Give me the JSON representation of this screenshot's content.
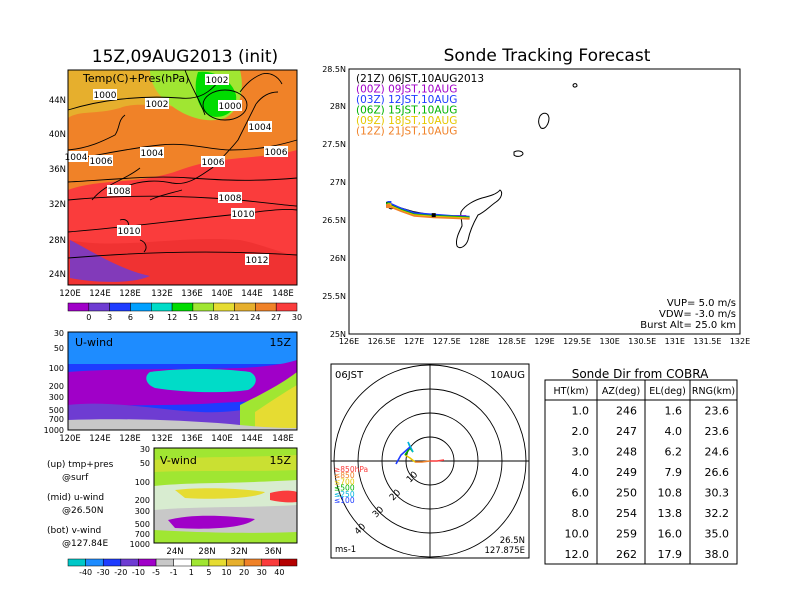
{
  "left_title": "15Z,09AUG2013 (init)",
  "right_title": "Sonde Tracking Forecast",
  "temp_panel": {
    "label": "Temp(C)+Pres(hPa)",
    "lat_ticks": [
      "44N",
      "40N",
      "36N",
      "32N",
      "28N",
      "24N"
    ],
    "lon_ticks": [
      "120E",
      "124E",
      "128E",
      "132E",
      "136E",
      "140E",
      "144E",
      "148E"
    ],
    "isobar_labels": [
      "1002",
      "1000",
      "1002",
      "1000",
      "1004",
      "1004",
      "1004",
      "1006",
      "1006",
      "1006",
      "1008",
      "1008",
      "1010",
      "1010",
      "1012"
    ],
    "colorbar_labels": [
      "0",
      "3",
      "6",
      "9",
      "12",
      "15",
      "18",
      "21",
      "24",
      "27",
      "30"
    ],
    "colorbar_colors": [
      "#a000c8",
      "#6e3cd2",
      "#1e3cff",
      "#00a0ff",
      "#00dcc8",
      "#00dc00",
      "#a0e632",
      "#e6dc32",
      "#e6af2d",
      "#f08228",
      "#fa3c3c"
    ]
  },
  "u_panel": {
    "label": "U-wind",
    "time": "15Z",
    "p_ticks": [
      "30",
      "50",
      "100",
      "200",
      "300",
      "500",
      "700",
      "1000"
    ],
    "lon_ticks": [
      "120E",
      "124E",
      "128E",
      "132E",
      "136E",
      "140E",
      "144E",
      "148E"
    ]
  },
  "v_panel": {
    "label": "V-wind",
    "time": "15Z",
    "p_ticks": [
      "30",
      "50",
      "100",
      "200",
      "300",
      "500",
      "700",
      "1000"
    ],
    "lat_ticks": [
      "24N",
      "28N",
      "32N",
      "36N"
    ]
  },
  "notes": [
    {
      "a": "(up) tmp+pres",
      "b": "@surf"
    },
    {
      "a": "(mid) u-wind",
      "b": "@26.50N"
    },
    {
      "a": "(bot) v-wind",
      "b": "@127.84E"
    }
  ],
  "wind_colorbar": {
    "labels": [
      "-40",
      "-30",
      "-20",
      "-10",
      "-5",
      "-1",
      "1",
      "5",
      "10",
      "20",
      "30",
      "40"
    ],
    "colors": [
      "#00c8c8",
      "#1e8cff",
      "#1e3cff",
      "#6e3cd2",
      "#a000c8",
      "#c8c8c8",
      "#ffffff",
      "#a0e632",
      "#e6dc32",
      "#e6af2d",
      "#f08228",
      "#fa3c3c",
      "#b40000"
    ]
  },
  "track_map": {
    "lat_ticks": [
      "28.5N",
      "28N",
      "27.5N",
      "27N",
      "26.5N",
      "26N",
      "25.5N",
      "25N"
    ],
    "lon_ticks": [
      "126E",
      "126.5E",
      "127E",
      "127.5E",
      "128E",
      "128.5E",
      "129E",
      "129.5E",
      "130E",
      "130.5E",
      "131E",
      "131.5E",
      "132E"
    ],
    "legend": [
      {
        "text": "(21Z)  06JST,10AUG2013",
        "color": "#000000"
      },
      {
        "text": "(00Z)  09JST,10AUG",
        "color": "#a000c8"
      },
      {
        "text": "(03Z)  12JST,10AUG",
        "color": "#1e3cff"
      },
      {
        "text": "(06Z)  15JST,10AUG",
        "color": "#00b400"
      },
      {
        "text": "(09Z)  18JST,10AUG",
        "color": "#e6c800"
      },
      {
        "text": "(12Z)  21JST,10AUG",
        "color": "#f08228"
      }
    ],
    "info": [
      "VUP=  5.0  m/s",
      "VDW=  -3.0  m/s",
      "Burst Alt=  25.0  km"
    ]
  },
  "polar": {
    "time_left": "06JST",
    "time_right": "10AUG",
    "pos_lat": "26.5N",
    "pos_lon": "127.875E",
    "unit": "ms-1",
    "ring_labels": [
      "10",
      "20",
      "30",
      "40"
    ],
    "levels": [
      {
        "text": "≥850hPa",
        "color": "#fa3c3c"
      },
      {
        "text": "≤850",
        "color": "#f08228"
      },
      {
        "text": "≤700",
        "color": "#e6c800"
      },
      {
        "text": "≤500",
        "color": "#00b400"
      },
      {
        "text": "≤250",
        "color": "#00b4dc"
      },
      {
        "text": "≤100",
        "color": "#1e3cff"
      }
    ]
  },
  "sonde_table": {
    "title": "Sonde Dir from COBRA",
    "headers": [
      "HT(km)",
      "AZ(deg)",
      "EL(deg)",
      "RNG(km)"
    ],
    "rows": [
      [
        "1.0",
        "246",
        "1.6",
        "23.6"
      ],
      [
        "2.0",
        "247",
        "4.0",
        "23.6"
      ],
      [
        "3.0",
        "248",
        "6.2",
        "24.6"
      ],
      [
        "4.0",
        "249",
        "7.9",
        "26.6"
      ],
      [
        "6.0",
        "250",
        "10.8",
        "30.3"
      ],
      [
        "8.0",
        "254",
        "13.8",
        "32.2"
      ],
      [
        "10.0",
        "259",
        "16.0",
        "35.0"
      ],
      [
        "12.0",
        "262",
        "17.9",
        "38.0"
      ]
    ]
  },
  "chart_data": [
    {
      "type": "heatmap",
      "title": "15Z,09AUG2013 (init)",
      "subtitle": "Temp(C)+Pres(hPa)",
      "xlim": [
        120,
        150
      ],
      "ylim": [
        22,
        48
      ],
      "legend": [
        0,
        3,
        6,
        9,
        12,
        15,
        18,
        21,
        24,
        27,
        30
      ]
    },
    {
      "type": "heatmap",
      "title": "U-wind",
      "xlim": [
        120,
        150
      ],
      "y_ticks": [
        30,
        50,
        100,
        200,
        300,
        500,
        700,
        1000
      ]
    },
    {
      "type": "heatmap",
      "title": "V-wind",
      "x_ticks": [
        "24N",
        "28N",
        "32N",
        "36N"
      ],
      "y_ticks": [
        30,
        50,
        100,
        200,
        300,
        500,
        700,
        1000
      ]
    },
    {
      "type": "line",
      "title": "Sonde Tracking Forecast",
      "xlim": [
        126,
        132
      ],
      "ylim": [
        25,
        28.5
      ],
      "series": [
        {
          "name": "(21Z)  06JST,10AUG2013",
          "x": [
            126.6,
            126.8,
            127.0,
            127.2,
            127.35
          ],
          "y": [
            26.72,
            26.66,
            26.61,
            26.58,
            26.57
          ]
        },
        {
          "name": "(00Z)  09JST,10AUG",
          "x": [
            126.6,
            126.8,
            127.0,
            127.3,
            127.5,
            127.8
          ],
          "y": [
            26.7,
            26.64,
            26.59,
            26.57,
            26.56,
            26.56
          ]
        },
        {
          "name": "(03Z)  12JST,10AUG",
          "x": [
            126.62,
            126.8,
            127.0,
            127.3,
            127.6,
            127.85
          ],
          "y": [
            26.73,
            26.66,
            26.6,
            26.58,
            26.56,
            26.55
          ]
        },
        {
          "name": "(06Z)  15JST,10AUG",
          "x": [
            126.6,
            126.8,
            127.0,
            127.3,
            127.6,
            127.85
          ],
          "y": [
            26.71,
            26.64,
            26.58,
            26.56,
            26.55,
            26.54
          ]
        },
        {
          "name": "(09Z)  18JST,10AUG",
          "x": [
            126.62,
            126.8,
            127.0,
            127.3,
            127.6,
            127.85
          ],
          "y": [
            26.7,
            26.63,
            26.57,
            26.55,
            26.54,
            26.53
          ]
        },
        {
          "name": "(12Z)  21JST,10AUG",
          "x": [
            126.6,
            126.8,
            127.0,
            127.3,
            127.6,
            127.85
          ],
          "y": [
            26.69,
            26.62,
            26.56,
            26.54,
            26.53,
            26.52
          ]
        }
      ]
    },
    {
      "type": "table",
      "title": "Sonde Dir from COBRA",
      "columns": [
        "HT(km)",
        "AZ(deg)",
        "EL(deg)",
        "RNG(km)"
      ],
      "rows": [
        [
          1.0,
          246,
          1.6,
          23.6
        ],
        [
          2.0,
          247,
          4.0,
          23.6
        ],
        [
          3.0,
          248,
          6.2,
          24.6
        ],
        [
          4.0,
          249,
          7.9,
          26.6
        ],
        [
          6.0,
          250,
          10.8,
          30.3
        ],
        [
          8.0,
          254,
          13.8,
          32.2
        ],
        [
          10.0,
          259,
          16.0,
          35.0
        ],
        [
          12.0,
          262,
          17.9,
          38.0
        ]
      ]
    }
  ]
}
